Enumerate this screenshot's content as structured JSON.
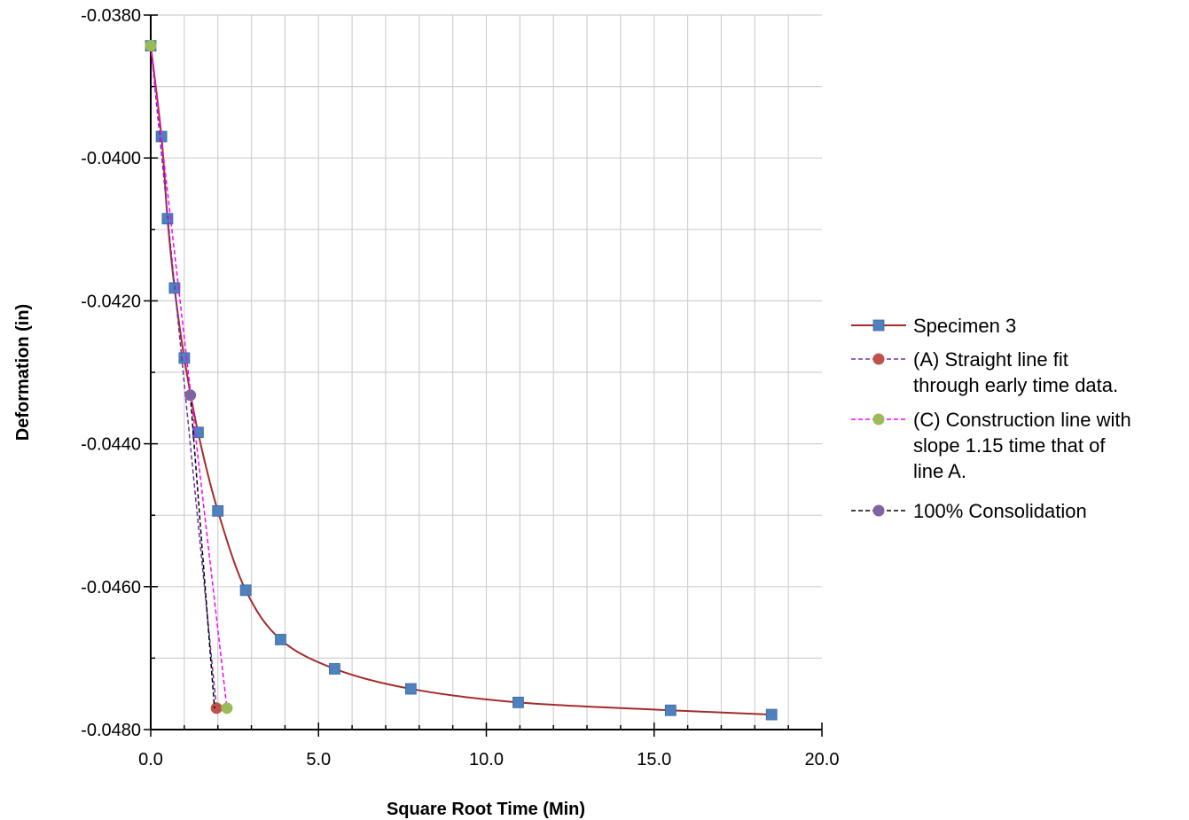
{
  "chart_data": {
    "type": "scatter",
    "title": "",
    "xlabel": "Square Root Time (Min)",
    "ylabel": "Deformation (in)",
    "xlim": [
      0,
      20
    ],
    "ylim": [
      -0.048,
      -0.038
    ],
    "x_ticks": [
      "0.0",
      "5.0",
      "10.0",
      "15.0",
      "20.0"
    ],
    "y_ticks": [
      "-0.0380",
      "-0.0400",
      "-0.0420",
      "-0.0440",
      "-0.0460",
      "-0.0480"
    ],
    "grid": true,
    "legend_position": "right",
    "series": [
      {
        "name": "Specimen 3",
        "color": "#A52A2A",
        "marker_color": "#4F81BD",
        "marker": "square",
        "line": "solid",
        "smooth": true,
        "x": [
          0,
          0.32,
          0.5,
          0.71,
          1.0,
          1.41,
          2.0,
          2.83,
          3.87,
          5.48,
          7.75,
          10.95,
          15.49,
          18.5
        ],
        "y": [
          -0.03843,
          -0.0397,
          -0.04085,
          -0.04182,
          -0.0428,
          -0.04384,
          -0.04494,
          -0.04605,
          -0.04674,
          -0.04715,
          -0.04743,
          -0.04762,
          -0.04773,
          -0.04779
        ]
      },
      {
        "name": "(A) Straight line fit through early time data.",
        "color": "#7030A0",
        "marker_color": "#C0504D",
        "marker": "circle",
        "line": "dashed",
        "marker_indices": [
          1
        ],
        "x": [
          0,
          1.96
        ],
        "y": [
          -0.03843,
          -0.0477
        ]
      },
      {
        "name": "(C) Construction line with slope 1.15 time that of line A.",
        "color": "#FF00FF",
        "marker_color": "#9BBB59",
        "marker": "circle",
        "line": "dashed",
        "marker_indices": [
          0,
          1
        ],
        "x": [
          0,
          2.27
        ],
        "y": [
          -0.03843,
          -0.0477
        ]
      },
      {
        "name": "100% Consolidation",
        "color": "#000000",
        "marker_color": "#8064A2",
        "marker": "circle",
        "line": "dashed",
        "marker_indices": [
          0
        ],
        "x": [
          1.18,
          1.9
        ],
        "y": [
          -0.04332,
          -0.0477
        ]
      }
    ]
  }
}
